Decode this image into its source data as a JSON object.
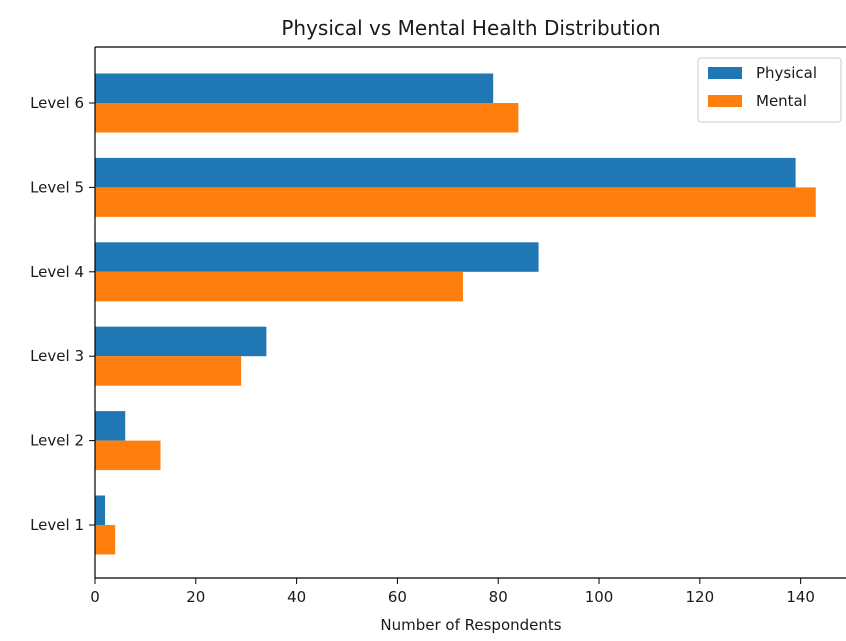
{
  "chart_data": {
    "type": "bar",
    "orientation": "horizontal",
    "title": "Physical vs Mental Health Distribution",
    "xlabel": "Number of Respondents",
    "ylabel": "",
    "categories": [
      "Level 1",
      "Level 2",
      "Level 3",
      "Level 4",
      "Level 5",
      "Level 6"
    ],
    "series": [
      {
        "name": "Physical",
        "color": "#1f77b4",
        "values": [
          2,
          6,
          34,
          88,
          139,
          79
        ]
      },
      {
        "name": "Mental",
        "color": "#ff7f0e",
        "values": [
          4,
          13,
          29,
          73,
          143,
          84
        ]
      }
    ],
    "xlim": [
      0,
      149
    ],
    "xticks": [
      0,
      20,
      40,
      60,
      80,
      100,
      120,
      140
    ],
    "grid": false,
    "legend_position": "top-right"
  }
}
